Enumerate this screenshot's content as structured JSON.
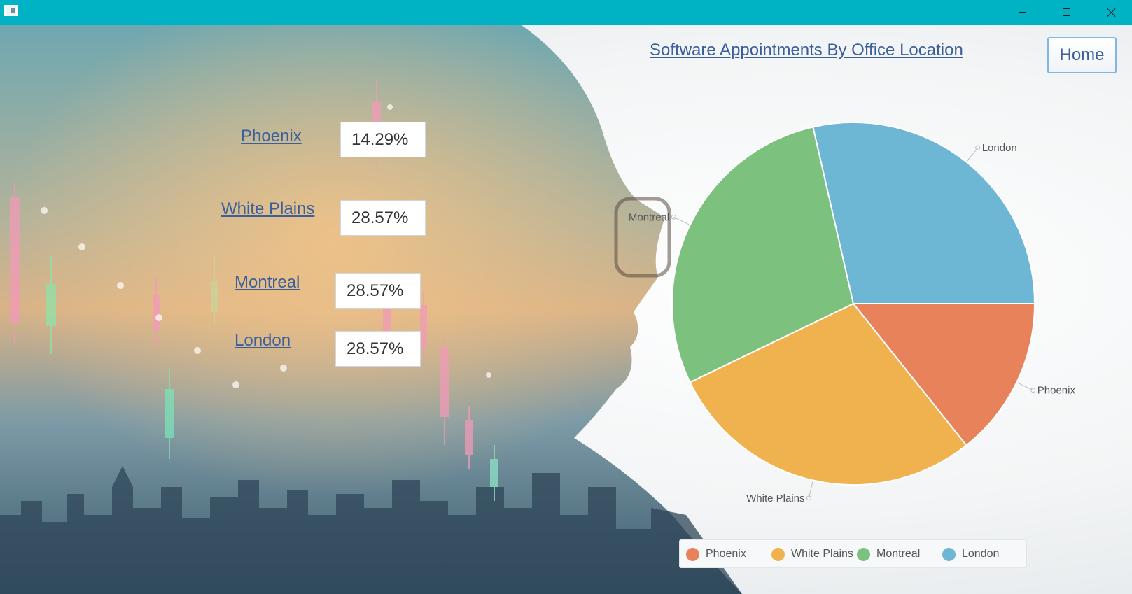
{
  "titlebar": {
    "minimize_symbol": "–",
    "maximize_symbol": "□",
    "close_symbol": "×"
  },
  "header": {
    "title": "Software Appointments By Office Location",
    "home_label": "Home"
  },
  "locations": [
    {
      "name": "Phoenix",
      "percent": "14.29%"
    },
    {
      "name": "White Plains",
      "percent": "28.57%"
    },
    {
      "name": "Montreal",
      "percent": "28.57%"
    },
    {
      "name": "London",
      "percent": "28.57%"
    }
  ],
  "colors": {
    "titlebar": "#00b3c4",
    "link": "#3a5f9a",
    "Phoenix": "#e8825a",
    "White Plains": "#f0b24f",
    "Montreal": "#7cc17e",
    "London": "#6db7d4"
  },
  "chart_data": {
    "type": "pie",
    "categories": [
      "Phoenix",
      "White Plains",
      "Montreal",
      "London"
    ],
    "values": [
      14.29,
      28.57,
      28.57,
      28.57
    ],
    "start_angle_deg": 0,
    "direction": "clockwise",
    "legend": "bottom",
    "labels_outside": true
  }
}
